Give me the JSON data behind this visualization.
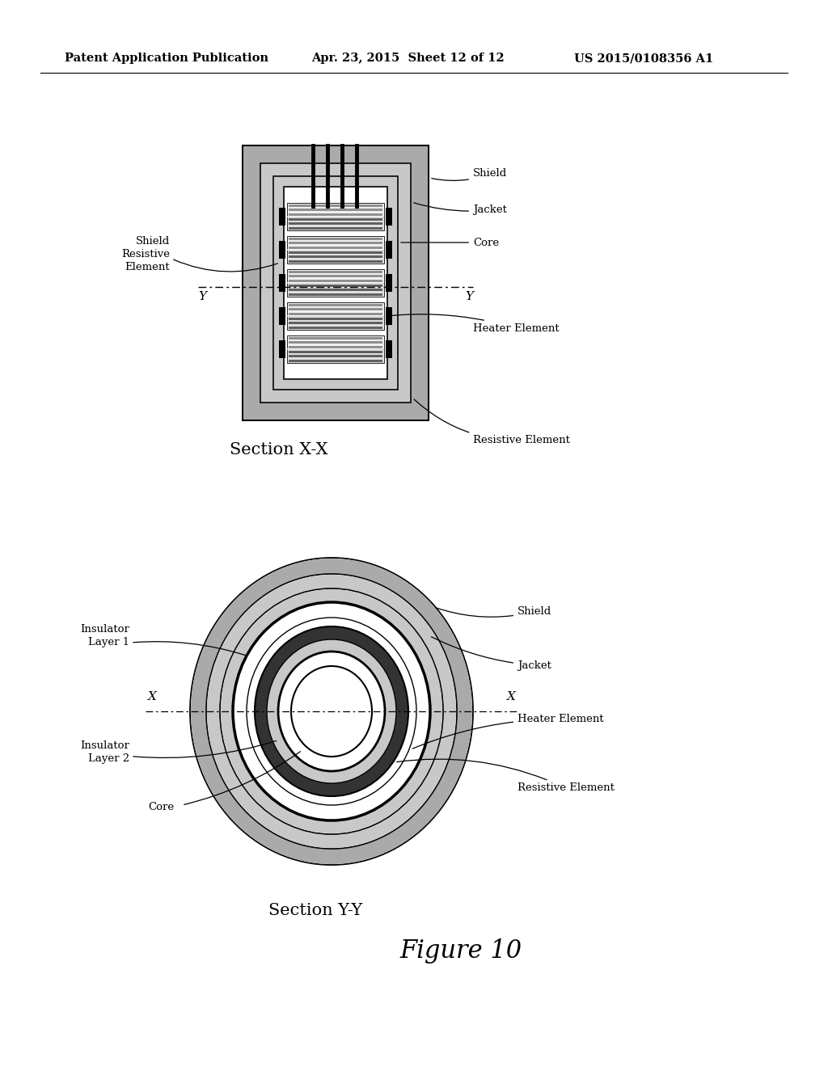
{
  "header_left": "Patent Application Publication",
  "header_mid": "Apr. 23, 2015  Sheet 12 of 12",
  "header_right": "US 2015/0108356 A1",
  "section_xx_label": "Section X-X",
  "section_yy_label": "Section Y-Y",
  "figure_label": "Figure 10",
  "bg_color": "#ffffff",
  "lc": "#000000",
  "stipple_dark": "#aaaaaa",
  "stipple_mid": "#c8c8c8",
  "stipple_light": "#d8d8d8",
  "stripe_gray": "#888888",
  "heater_fill": "#e8e8e8",
  "core_stipple": "#c0c0c0"
}
